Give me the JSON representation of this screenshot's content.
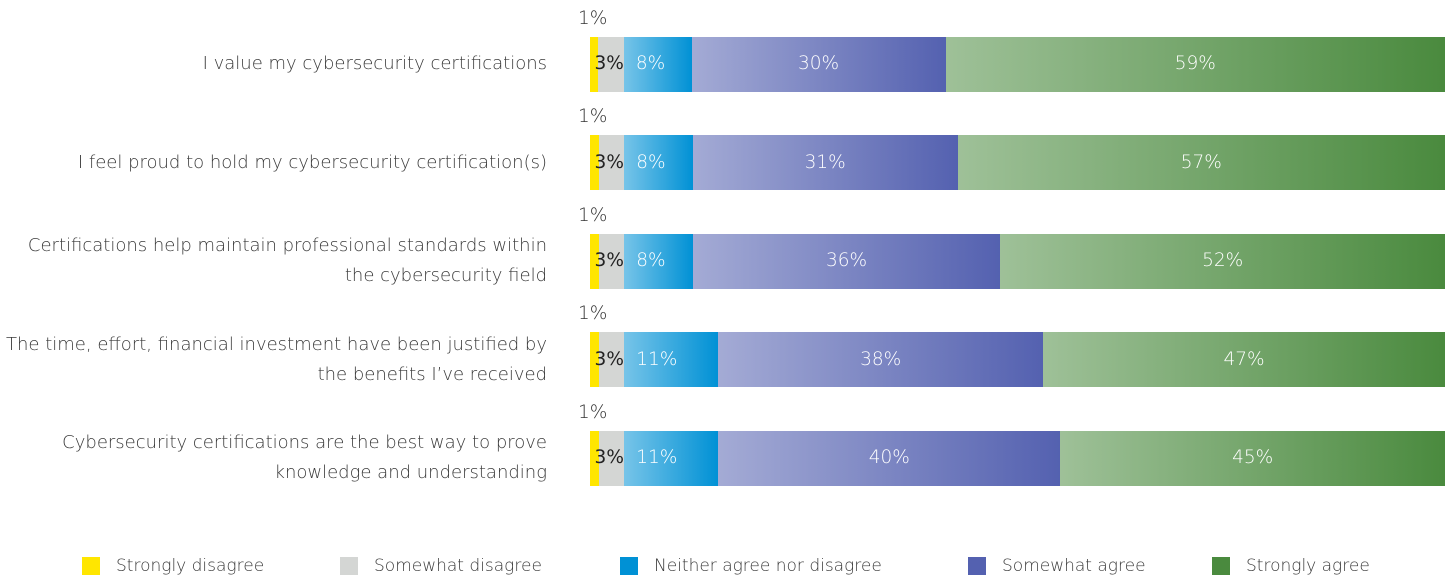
{
  "chart_data": {
    "type": "stacked-bar",
    "categories": [
      "I value my cybersecurity certifications",
      "I feel proud to hold my cybersecurity certification(s)",
      "Certifications help maintain professional standards within the cybersecurity field",
      "The time, effort, financial investment have been justified by the benefits I’ve received",
      "Cybersecurity certifications are the best way to prove knowledge and understanding"
    ],
    "series": [
      {
        "name": "Strongly disagree",
        "color": "#ffe600",
        "values": [
          1,
          1,
          1,
          1,
          1
        ],
        "value_labels": [
          "1%",
          "1%",
          "1%",
          "1%",
          "1%"
        ]
      },
      {
        "name": "Somewhat disagree",
        "color": "#d4d6d4",
        "values": [
          3,
          3,
          3,
          3,
          3
        ],
        "value_labels": [
          "3%",
          "3%",
          "3%",
          "3%",
          "3%"
        ]
      },
      {
        "name": "Neither agree nor disagree",
        "color": "#0091d5",
        "values": [
          8,
          8,
          8,
          11,
          11
        ],
        "value_labels": [
          "8%",
          "8%",
          "8%",
          "11%",
          "11%"
        ]
      },
      {
        "name": "Somewhat agree",
        "color": "#5461b0",
        "values": [
          30,
          31,
          36,
          38,
          40
        ],
        "value_labels": [
          "30%",
          "31%",
          "36%",
          "38%",
          "40%"
        ]
      },
      {
        "name": "Strongly agree",
        "color": "#4a8a3e",
        "values": [
          59,
          57,
          52,
          47,
          45
        ],
        "value_labels": [
          "59%",
          "57%",
          "52%",
          "47%",
          "45%"
        ]
      }
    ]
  }
}
